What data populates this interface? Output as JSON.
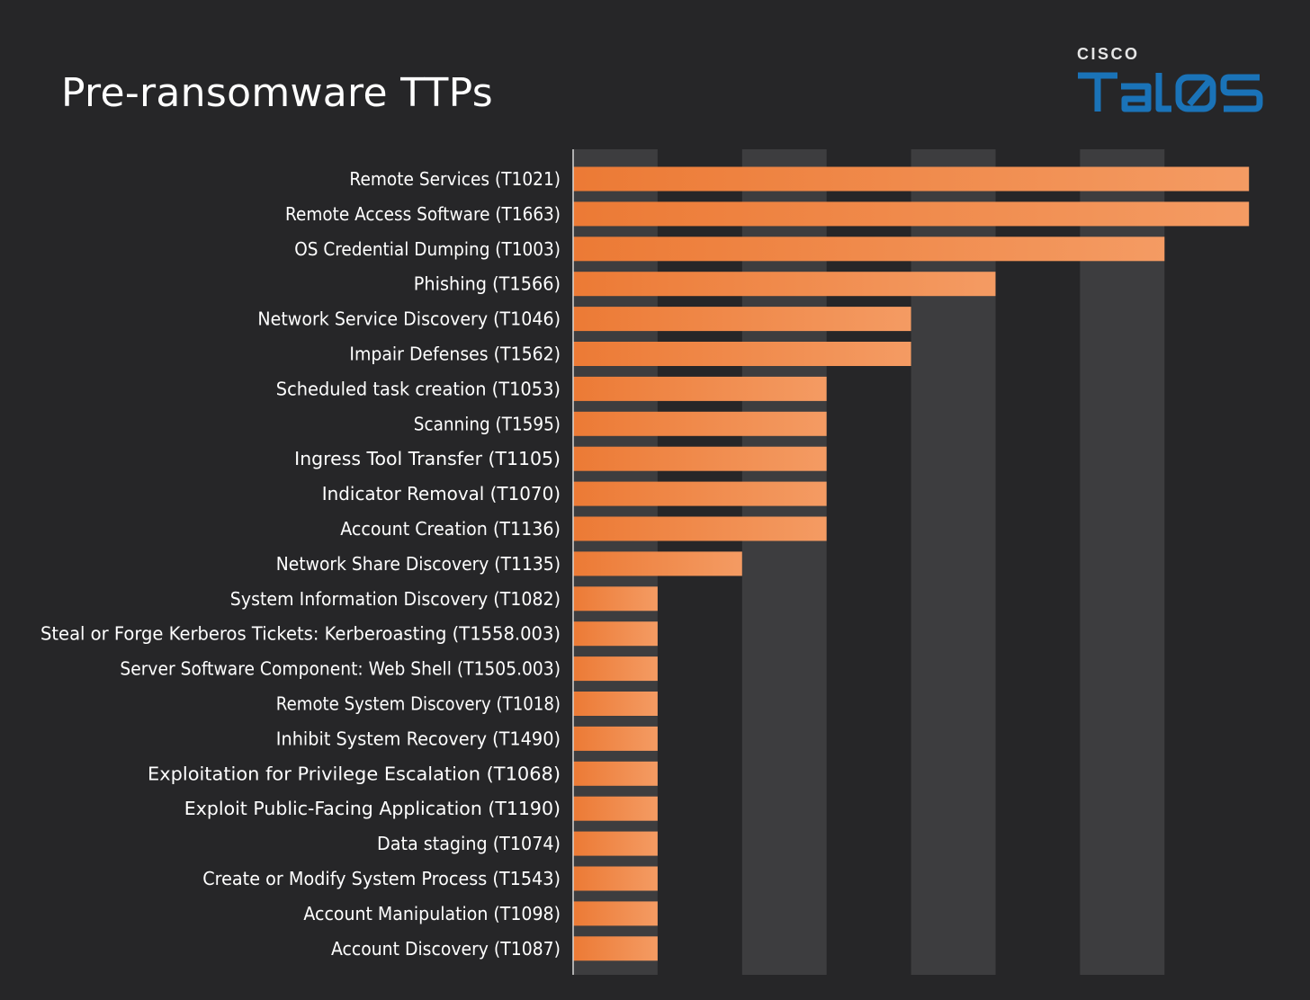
{
  "title": "Pre-ransomware TTPs",
  "logo": {
    "company": "CISCO",
    "product": "TALOS"
  },
  "colors": {
    "background": "#262628",
    "column_band": "#3d3d3f",
    "bar_start": "#ec7a35",
    "bar_end": "#f49b63",
    "label": "#ffffff",
    "axis": "#d8d8d8",
    "logo_blue": "#1a73b8"
  },
  "chart_data": {
    "type": "bar",
    "orientation": "horizontal",
    "title": "Pre-ransomware TTPs",
    "xlabel": "",
    "ylabel": "",
    "xlim": [
      0,
      8
    ],
    "grid": "alternating vertical bands",
    "categories": [
      "Remote Services (T1021)",
      "Remote Access Software (T1663)",
      "OS Credential Dumping (T1003)",
      "Phishing (T1566)",
      "Network Service Discovery (T1046)",
      "Impair Defenses (T1562)",
      "Scheduled task creation (T1053)",
      "Scanning (T1595)",
      "Ingress Tool Transfer (T1105)",
      "Indicator Removal (T1070) ",
      "Account Creation (T1136)",
      "Network Share Discovery (T1135)",
      "System Information Discovery (T1082)",
      "Steal or Forge Kerberos Tickets: Kerberoasting (T1558.003)",
      "Server Software Component: Web Shell (T1505.003)",
      "Remote System Discovery (T1018)",
      "Inhibit System Recovery (T1490)",
      "Exploitation for Privilege Escalation (T1068)",
      "Exploit Public-Facing Application (T1190)",
      "Data staging (T1074)",
      "Create or Modify System Process (T1543)",
      "Account Manipulation (T1098)",
      "Account Discovery (T1087)"
    ],
    "values": [
      8,
      8,
      7,
      5,
      4,
      4,
      3,
      3,
      3,
      3,
      3,
      2,
      1,
      1,
      1,
      1,
      1,
      1,
      1,
      1,
      1,
      1,
      1
    ]
  }
}
